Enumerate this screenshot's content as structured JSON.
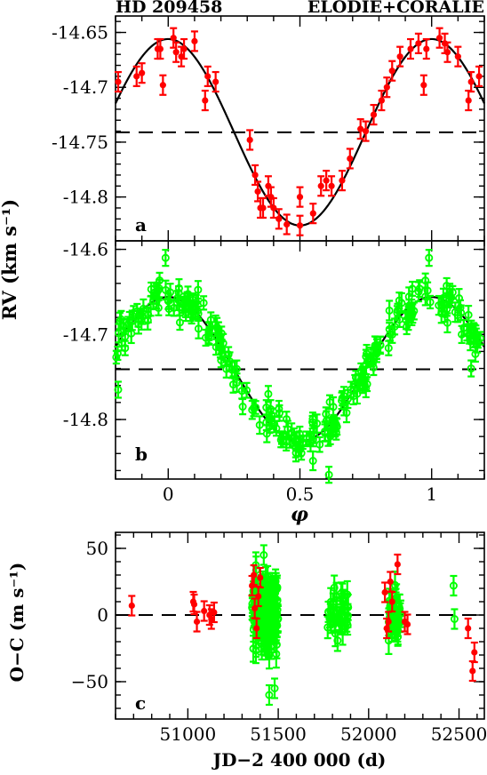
{
  "header": {
    "star": "HD 209458",
    "instruments": "ELODIE+CORALIE"
  },
  "colors": {
    "elodie": "#ff0000",
    "coralie": "#00ff00",
    "axes": "#000000"
  },
  "chart_data": [
    {
      "panel": "a",
      "type": "scatter",
      "instrument": "ELODIE",
      "marker": "filled-circle",
      "xlim": [
        -0.2,
        1.2
      ],
      "ylim": [
        -14.84,
        -14.635
      ],
      "yticks": [
        "-14.65",
        "-14.7",
        "-14.75",
        "-14.8"
      ],
      "ytick_values": [
        -14.65,
        -14.7,
        -14.75,
        -14.8
      ],
      "systemic_velocity": -14.741,
      "model": {
        "amplitude": 0.085,
        "gamma": -14.741
      },
      "x": [
        -0.19,
        -0.12,
        -0.1,
        -0.04,
        -0.02,
        0.02,
        0.03,
        0.05,
        0.06,
        -0.03,
        0.1,
        0.14,
        0.15,
        0.18,
        0.31,
        0.33,
        0.34,
        0.35,
        0.36,
        0.38,
        0.39,
        0.4,
        0.42,
        0.45,
        0.5,
        0.5,
        0.55,
        0.58,
        0.6,
        0.62,
        0.66,
        0.69,
        0.73,
        0.75,
        0.78,
        0.81,
        0.83,
        0.85,
        0.88,
        0.92,
        0.95,
        0.98,
        0.97,
        1.03,
        1.05,
        1.06,
        1.1,
        1.14,
        1.15,
        1.18
      ],
      "y": [
        -14.695,
        -14.69,
        -14.687,
        -14.665,
        -14.698,
        -14.655,
        -14.668,
        -14.672,
        -14.665,
        -14.665,
        -14.658,
        -14.712,
        -14.69,
        -14.695,
        -14.748,
        -14.78,
        -14.795,
        -14.81,
        -14.81,
        -14.79,
        -14.8,
        -14.81,
        -14.82,
        -14.825,
        -14.8,
        -14.826,
        -14.815,
        -14.79,
        -14.785,
        -14.79,
        -14.785,
        -14.765,
        -14.738,
        -14.74,
        -14.725,
        -14.712,
        -14.7,
        -14.685,
        -14.672,
        -14.665,
        -14.66,
        -14.665,
        -14.698,
        -14.655,
        -14.66,
        -14.668,
        -14.672,
        -14.712,
        -14.695,
        -14.69
      ]
    },
    {
      "panel": "b",
      "type": "scatter",
      "instrument": "CORALIE",
      "marker": "open-circle",
      "xlim": [
        -0.2,
        1.2
      ],
      "ylim": [
        -14.87,
        -14.59
      ],
      "yticks": [
        "-14.6",
        "-14.7",
        "-14.8"
      ],
      "ytick_values": [
        -14.6,
        -14.7,
        -14.8
      ],
      "xticks": [
        "0",
        "0.5",
        "1"
      ],
      "xtick_values": [
        0,
        0.5,
        1
      ],
      "xlabel": "φ",
      "systemic_velocity": -14.741,
      "model": {
        "amplitude": 0.085,
        "gamma": -14.741
      },
      "n_points": 260,
      "scatter_sigma": 0.011,
      "outliers": {
        "x": [
          -0.19,
          -0.01,
          0.38,
          0.61,
          0.99,
          1.15
        ],
        "y": [
          -14.765,
          -14.61,
          -14.77,
          -14.865,
          -14.61,
          -14.74
        ]
      }
    },
    {
      "panel": "c",
      "type": "scatter",
      "xlim": [
        50600,
        52640
      ],
      "ylim": [
        -78,
        62
      ],
      "xticks": [
        "51000",
        "51500",
        "52000",
        "52500"
      ],
      "xtick_values": [
        51000,
        51500,
        52000,
        52500
      ],
      "yticks": [
        "50",
        "0",
        "−50"
      ],
      "ytick_values": [
        50,
        0,
        -50
      ],
      "xlabel": "JD−2 400 000 (d)",
      "ylabel": "O−C (m s⁻¹)",
      "elodie": {
        "x": [
          50690,
          51030,
          51035,
          51050,
          51090,
          51120,
          51130,
          51145,
          51355,
          51365,
          51370,
          51380,
          51390,
          51400,
          52090,
          52100,
          52110,
          52120,
          52130,
          52160,
          52200,
          52215,
          52550,
          52575,
          52585
        ],
        "y": [
          7,
          10,
          8,
          -5,
          3,
          0,
          -3,
          2,
          22,
          30,
          5,
          -10,
          14,
          28,
          17,
          -10,
          -5,
          25,
          10,
          38,
          -5,
          -7,
          -10,
          -42,
          -28
        ]
      },
      "coralie_clusters": [
        {
          "x_min": 51350,
          "x_max": 51500,
          "n": 140,
          "sigma": 14
        },
        {
          "x_min": 51770,
          "x_max": 51890,
          "n": 35,
          "sigma": 10
        },
        {
          "x_min": 52110,
          "x_max": 52180,
          "n": 40,
          "sigma": 9
        }
      ],
      "coralie_extra": {
        "x": [
          52470,
          52475,
          51420,
          51450,
          51480
        ],
        "y": [
          22,
          -3,
          45,
          -60,
          -55
        ]
      }
    }
  ],
  "panel_labels": {
    "a": "a",
    "b": "b",
    "c": "c"
  },
  "shared": {
    "ylabel_ab": "RV (km s⁻¹)"
  }
}
